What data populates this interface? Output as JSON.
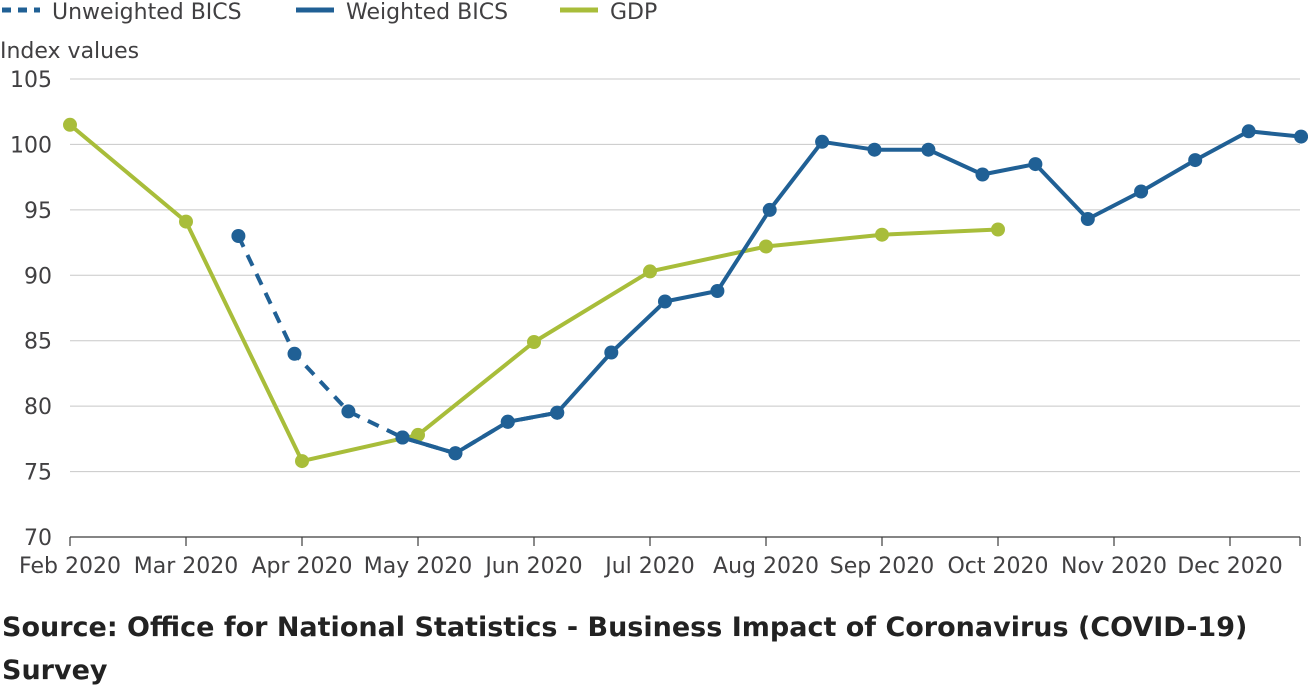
{
  "source": "Source: Office for National Statistics - Business Impact of Coronavirus (COVID-19) Survey",
  "chart_data": {
    "type": "line",
    "title": "",
    "xlabel": "",
    "ylabel": "Index values",
    "ylim": [
      70,
      105
    ],
    "yticks": [
      70,
      75,
      80,
      85,
      90,
      95,
      100,
      105
    ],
    "xticks": [
      "Feb 2020",
      "Mar 2020",
      "Apr 2020",
      "May 2020",
      "Jun 2020",
      "Jul 2020",
      "Aug 2020",
      "Sep 2020",
      "Oct 2020",
      "Nov 2020",
      "Dec 2020"
    ],
    "grid": true,
    "legend_position": "top-left",
    "series": [
      {
        "name": "Unweighted BICS",
        "color": "#206095",
        "dash": "dashed",
        "points": [
          {
            "x": "2020-03-15",
            "y": 93.0
          },
          {
            "x": "2020-03-30",
            "y": 84.0
          },
          {
            "x": "2020-04-13",
            "y": 79.6
          },
          {
            "x": "2020-04-27",
            "y": 77.6
          },
          {
            "x": "2020-05-11",
            "y": 76.4
          },
          {
            "x": "2020-05-25",
            "y": 78.8
          },
          {
            "x": "2020-06-07",
            "y": 79.5
          }
        ]
      },
      {
        "name": "Weighted BICS",
        "color": "#206095",
        "dash": "solid",
        "points": [
          {
            "x": "2020-04-27",
            "y": 77.6
          },
          {
            "x": "2020-05-11",
            "y": 76.4
          },
          {
            "x": "2020-05-25",
            "y": 78.8
          },
          {
            "x": "2020-06-07",
            "y": 79.5
          },
          {
            "x": "2020-06-21",
            "y": 84.1
          },
          {
            "x": "2020-07-05",
            "y": 88.0
          },
          {
            "x": "2020-07-19",
            "y": 88.8
          },
          {
            "x": "2020-08-02",
            "y": 95.0
          },
          {
            "x": "2020-08-16",
            "y": 100.2
          },
          {
            "x": "2020-08-30",
            "y": 99.6
          },
          {
            "x": "2020-09-13",
            "y": 99.6
          },
          {
            "x": "2020-09-27",
            "y": 97.7
          },
          {
            "x": "2020-10-11",
            "y": 98.5
          },
          {
            "x": "2020-10-25",
            "y": 94.3
          },
          {
            "x": "2020-11-08",
            "y": 96.4
          },
          {
            "x": "2020-11-22",
            "y": 98.8
          },
          {
            "x": "2020-12-06",
            "y": 101.0
          },
          {
            "x": "2020-12-20",
            "y": 100.6
          }
        ]
      },
      {
        "name": "GDP",
        "color": "#a8bd3a",
        "dash": "solid",
        "points": [
          {
            "x": "2020-02-01",
            "y": 101.5
          },
          {
            "x": "2020-03-01",
            "y": 94.1
          },
          {
            "x": "2020-04-01",
            "y": 75.8
          },
          {
            "x": "2020-05-01",
            "y": 77.8
          },
          {
            "x": "2020-06-01",
            "y": 84.9
          },
          {
            "x": "2020-07-01",
            "y": 90.3
          },
          {
            "x": "2020-08-01",
            "y": 92.2
          },
          {
            "x": "2020-09-01",
            "y": 93.1
          },
          {
            "x": "2020-10-01",
            "y": 93.5
          }
        ]
      }
    ]
  }
}
